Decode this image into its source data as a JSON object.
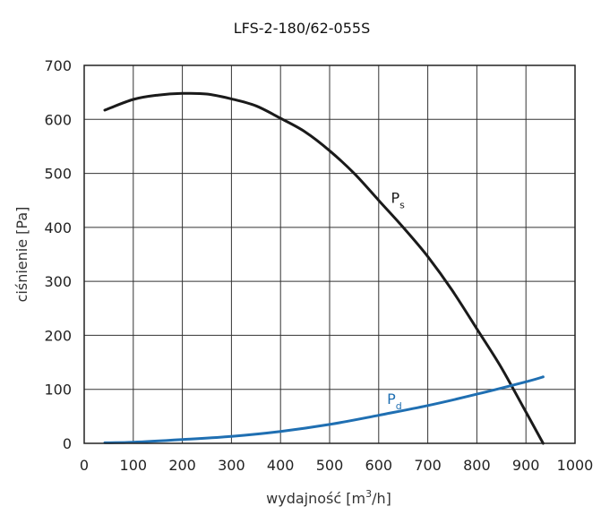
{
  "chart_data": {
    "type": "line",
    "title": "LFS-2-180/62-055S",
    "xlabel": "wydajność [m",
    "xlabel_sup": "3",
    "xlabel_tail": "/h]",
    "ylabel": "ciśnienie [Pa]",
    "xlim": [
      0,
      1000
    ],
    "ylim": [
      0,
      700
    ],
    "x_ticks": [
      0,
      100,
      200,
      300,
      400,
      500,
      600,
      700,
      800,
      900,
      1000
    ],
    "y_ticks": [
      0,
      100,
      200,
      300,
      400,
      500,
      600,
      700
    ],
    "grid": true,
    "series": [
      {
        "name": "P",
        "name_sub": "s",
        "color": "#1a1a1a",
        "points": [
          [
            42,
            617
          ],
          [
            100,
            637
          ],
          [
            150,
            645
          ],
          [
            200,
            648
          ],
          [
            250,
            647
          ],
          [
            300,
            638
          ],
          [
            350,
            625
          ],
          [
            400,
            602
          ],
          [
            450,
            577
          ],
          [
            500,
            542
          ],
          [
            550,
            500
          ],
          [
            600,
            450
          ],
          [
            650,
            400
          ],
          [
            700,
            346
          ],
          [
            750,
            283
          ],
          [
            800,
            212
          ],
          [
            850,
            140
          ],
          [
            900,
            58
          ],
          [
            935,
            0
          ]
        ]
      },
      {
        "name": "P",
        "name_sub": "d",
        "color": "#1f6fb2",
        "points": [
          [
            42,
            1
          ],
          [
            100,
            2
          ],
          [
            200,
            7
          ],
          [
            300,
            13
          ],
          [
            400,
            22
          ],
          [
            500,
            35
          ],
          [
            600,
            52
          ],
          [
            700,
            70
          ],
          [
            800,
            91
          ],
          [
            900,
            114
          ],
          [
            935,
            123
          ]
        ]
      }
    ]
  }
}
